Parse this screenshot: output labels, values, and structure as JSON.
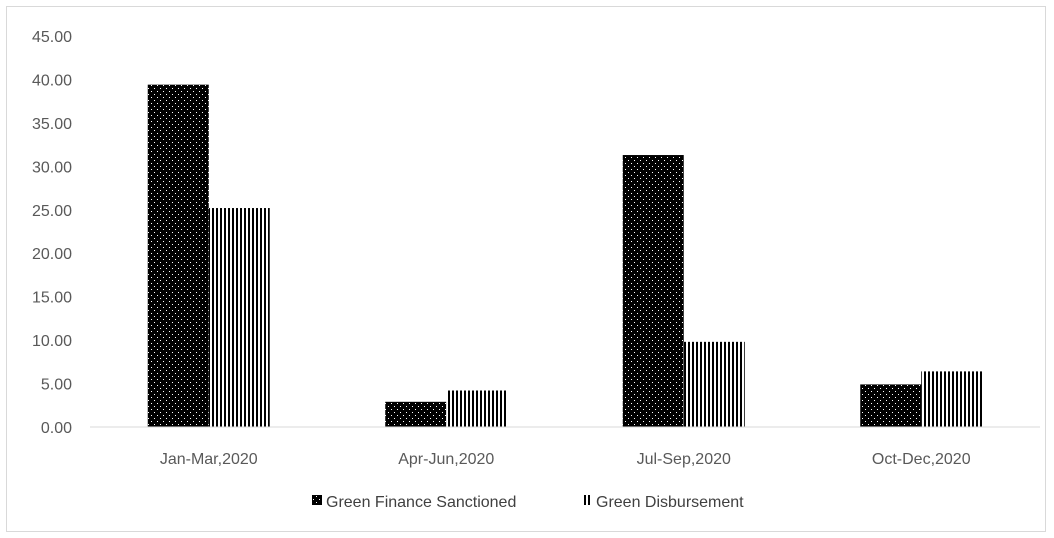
{
  "chart_data": {
    "type": "bar",
    "title": "",
    "xlabel": "",
    "ylabel": "",
    "categories": [
      "Jan-Mar,2020",
      "Apr-Jun,2020",
      "Jul-Sep,2020",
      "Oct-Dec,2020"
    ],
    "series": [
      {
        "name": "Green Finance Sanctioned",
        "values": [
          39.4,
          2.9,
          31.3,
          4.9
        ],
        "pattern": "dots",
        "color": "#000000"
      },
      {
        "name": "Green Disbursement",
        "values": [
          25.2,
          4.2,
          9.8,
          6.4
        ],
        "pattern": "vertical-stripes",
        "color": "#000000"
      }
    ],
    "ylim": [
      0,
      45
    ],
    "yticks": [
      "0.00",
      "5.00",
      "10.00",
      "15.00",
      "20.00",
      "25.00",
      "30.00",
      "35.00",
      "40.00",
      "45.00"
    ],
    "grid": false,
    "legend_position": "bottom"
  }
}
